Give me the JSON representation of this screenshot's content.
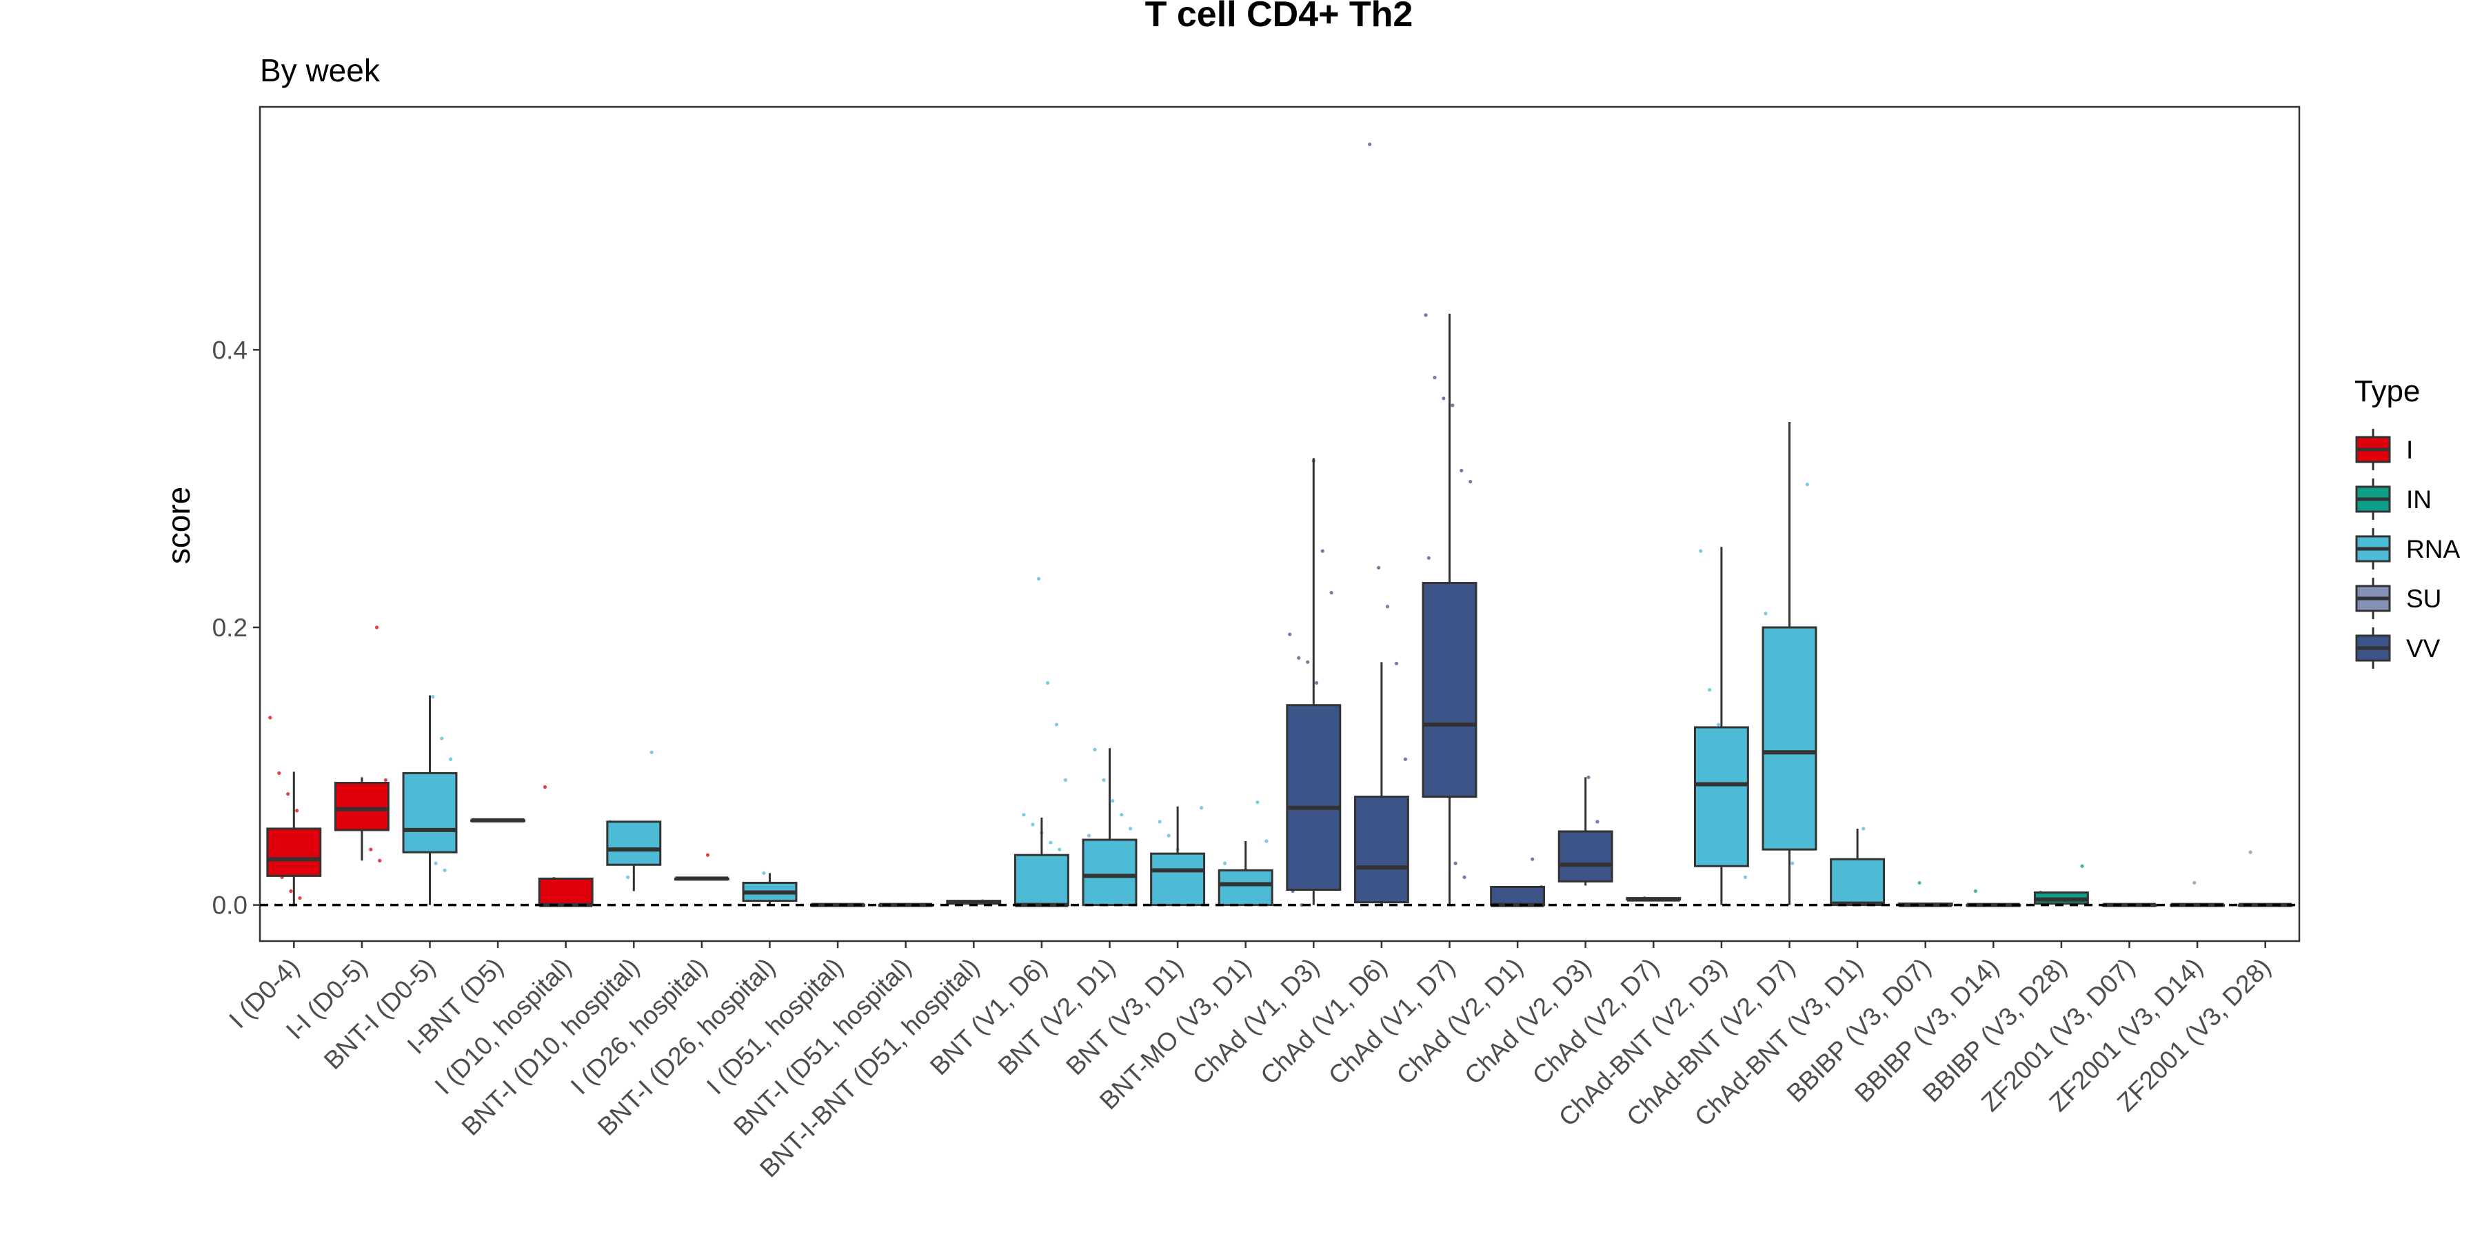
{
  "chart_data": {
    "type": "box",
    "title": "T cell CD4+ Th2",
    "subtitle": "By week",
    "xlabel": "",
    "ylabel": "score",
    "ylim": [
      -0.026,
      0.575
    ],
    "yticks": [
      0.0,
      0.2,
      0.4
    ],
    "ytick_labels": [
      "0.0",
      "0.2",
      "0.4"
    ],
    "reference_line": {
      "y": 0.0,
      "style": "dashed"
    },
    "grid": false,
    "legend": {
      "title": "Type",
      "position": "right",
      "entries": [
        {
          "name": "I",
          "color": "#E0000B"
        },
        {
          "name": "IN",
          "color": "#0D9F87"
        },
        {
          "name": "RNA",
          "color": "#4DBBD5"
        },
        {
          "name": "SU",
          "color": "#8491B4"
        },
        {
          "name": "VV",
          "color": "#3C5488"
        }
      ]
    },
    "boxes": [
      {
        "category": "I (D0-4)",
        "type": "I",
        "min": 0.0,
        "q1": 0.021,
        "median": 0.033,
        "q3": 0.055,
        "max": 0.096,
        "points": [
          0.135,
          0.095,
          0.08,
          0.068,
          0.05,
          0.04,
          0.03,
          0.02,
          0.01,
          0.005
        ]
      },
      {
        "category": "I-I (D0-5)",
        "type": "I",
        "min": 0.032,
        "q1": 0.054,
        "median": 0.069,
        "q3": 0.088,
        "max": 0.092,
        "points": [
          0.2,
          0.09,
          0.085,
          0.075,
          0.06,
          0.04,
          0.032
        ]
      },
      {
        "category": "BNT-I (D0-5)",
        "type": "RNA",
        "min": 0.0,
        "q1": 0.038,
        "median": 0.054,
        "q3": 0.095,
        "max": 0.151,
        "points": [
          0.15,
          0.12,
          0.105,
          0.09,
          0.07,
          0.05,
          0.03,
          0.025
        ]
      },
      {
        "category": "I-BNT (D5)",
        "type": "I",
        "min": 0.061,
        "q1": 0.061,
        "median": 0.061,
        "q3": 0.061,
        "max": 0.061,
        "points": [
          0.061
        ]
      },
      {
        "category": "I (D10, hospital)",
        "type": "I",
        "min": 0.0,
        "q1": 0.0,
        "median": 0.0,
        "q3": 0.019,
        "max": 0.019,
        "points": [
          0.085,
          0.019,
          0.002
        ]
      },
      {
        "category": "BNT-I (D10, hospital)",
        "type": "RNA",
        "min": 0.01,
        "q1": 0.029,
        "median": 0.04,
        "q3": 0.06,
        "max": 0.06,
        "points": [
          0.11,
          0.06,
          0.04,
          0.02
        ]
      },
      {
        "category": "I (D26, hospital)",
        "type": "I",
        "min": 0.019,
        "q1": 0.019,
        "median": 0.019,
        "q3": 0.019,
        "max": 0.019,
        "points": [
          0.036,
          0.019
        ]
      },
      {
        "category": "BNT-I (D26, hospital)",
        "type": "RNA",
        "min": 0.0,
        "q1": 0.003,
        "median": 0.009,
        "q3": 0.016,
        "max": 0.023,
        "points": [
          0.023,
          0.012,
          0.004
        ]
      },
      {
        "category": "I (D51, hospital)",
        "type": "I",
        "min": 0.0,
        "q1": 0.0,
        "median": 0.0,
        "q3": 0.0,
        "max": 0.0,
        "points": [
          0.0
        ]
      },
      {
        "category": "BNT-I (D51, hospital)",
        "type": "RNA",
        "min": 0.0,
        "q1": 0.0,
        "median": 0.0,
        "q3": 0.0,
        "max": 0.0,
        "points": [
          0.0
        ]
      },
      {
        "category": "BNT-I-BNT (D51, hospital)",
        "type": "RNA",
        "min": 0.0,
        "q1": 0.001,
        "median": 0.002,
        "q3": 0.003,
        "max": 0.003,
        "points": [
          0.003
        ]
      },
      {
        "category": "BNT (V1, D6)",
        "type": "RNA",
        "min": 0.0,
        "q1": 0.0,
        "median": 0.0,
        "q3": 0.036,
        "max": 0.063,
        "points": [
          0.235,
          0.16,
          0.13,
          0.09,
          0.065,
          0.058,
          0.052,
          0.045,
          0.04,
          0.02,
          0.01
        ]
      },
      {
        "category": "BNT (V2, D1)",
        "type": "RNA",
        "min": 0.0,
        "q1": 0.0,
        "median": 0.021,
        "q3": 0.047,
        "max": 0.113,
        "points": [
          0.112,
          0.09,
          0.075,
          0.065,
          0.055,
          0.05,
          0.03,
          0.015,
          0.005
        ]
      },
      {
        "category": "BNT (V3, D1)",
        "type": "RNA",
        "min": 0.0,
        "q1": 0.0,
        "median": 0.025,
        "q3": 0.037,
        "max": 0.071,
        "points": [
          0.07,
          0.06,
          0.05,
          0.04,
          0.03,
          0.01
        ]
      },
      {
        "category": "BNT-MO (V3, D1)",
        "type": "RNA",
        "min": 0.0,
        "q1": 0.0,
        "median": 0.015,
        "q3": 0.025,
        "max": 0.046,
        "points": [
          0.074,
          0.046,
          0.03,
          0.02,
          0.005
        ]
      },
      {
        "category": "ChAd (V1, D3)",
        "type": "VV",
        "min": 0.0,
        "q1": 0.011,
        "median": 0.07,
        "q3": 0.144,
        "max": 0.322,
        "points": [
          0.32,
          0.255,
          0.225,
          0.195,
          0.178,
          0.175,
          0.16,
          0.12,
          0.06,
          0.01,
          0.0
        ]
      },
      {
        "category": "ChAd (V1, D6)",
        "type": "VV",
        "min": 0.0,
        "q1": 0.002,
        "median": 0.027,
        "q3": 0.078,
        "max": 0.175,
        "points": [
          0.548,
          0.243,
          0.215,
          0.174,
          0.105,
          0.06,
          0.03,
          0.004
        ]
      },
      {
        "category": "ChAd (V1, D7)",
        "type": "VV",
        "min": 0.0,
        "q1": 0.078,
        "median": 0.13,
        "q3": 0.232,
        "max": 0.426,
        "points": [
          0.425,
          0.38,
          0.365,
          0.36,
          0.313,
          0.305,
          0.25,
          0.22,
          0.1,
          0.03,
          0.02
        ]
      },
      {
        "category": "ChAd (V2, D1)",
        "type": "VV",
        "min": 0.0,
        "q1": 0.0,
        "median": 0.0,
        "q3": 0.013,
        "max": 0.013,
        "points": [
          0.033,
          0.013
        ]
      },
      {
        "category": "ChAd (V2, D3)",
        "type": "VV",
        "min": 0.014,
        "q1": 0.017,
        "median": 0.029,
        "q3": 0.053,
        "max": 0.092,
        "points": [
          0.092,
          0.06,
          0.04,
          0.02
        ]
      },
      {
        "category": "ChAd (V2, D7)",
        "type": "VV",
        "min": 0.004,
        "q1": 0.004,
        "median": 0.004,
        "q3": 0.005,
        "max": 0.005,
        "points": [
          0.005
        ]
      },
      {
        "category": "ChAd-BNT (V2, D3)",
        "type": "RNA",
        "min": 0.0,
        "q1": 0.028,
        "median": 0.087,
        "q3": 0.128,
        "max": 0.258,
        "points": [
          0.255,
          0.155,
          0.13,
          0.09,
          0.05,
          0.02
        ]
      },
      {
        "category": "ChAd-BNT (V2, D7)",
        "type": "RNA",
        "min": 0.0,
        "q1": 0.04,
        "median": 0.11,
        "q3": 0.2,
        "max": 0.348,
        "points": [
          0.303,
          0.21,
          0.15,
          0.05,
          0.03
        ]
      },
      {
        "category": "ChAd-BNT (V3, D1)",
        "type": "RNA",
        "min": 0.0,
        "q1": 0.0,
        "median": 0.001,
        "q3": 0.033,
        "max": 0.055,
        "points": [
          0.055,
          0.02
        ]
      },
      {
        "category": "BBIBP (V3, D07)",
        "type": "IN",
        "min": 0.0,
        "q1": 0.0,
        "median": 0.0,
        "q3": 0.001,
        "max": 0.001,
        "points": [
          0.016
        ]
      },
      {
        "category": "BBIBP (V3, D14)",
        "type": "IN",
        "min": 0.0,
        "q1": 0.0,
        "median": 0.0,
        "q3": 0.0,
        "max": 0.0,
        "points": [
          0.01
        ]
      },
      {
        "category": "BBIBP (V3, D28)",
        "type": "IN",
        "min": 0.0,
        "q1": 0.001,
        "median": 0.004,
        "q3": 0.009,
        "max": 0.009,
        "points": [
          0.028,
          0.009
        ]
      },
      {
        "category": "ZF2001 (V3, D07)",
        "type": "SU",
        "min": 0.0,
        "q1": 0.0,
        "median": 0.0,
        "q3": 0.0,
        "max": 0.0,
        "points": [
          0.0
        ]
      },
      {
        "category": "ZF2001 (V3, D14)",
        "type": "SU",
        "min": 0.0,
        "q1": 0.0,
        "median": 0.0,
        "q3": 0.0,
        "max": 0.0,
        "points": [
          0.016
        ]
      },
      {
        "category": "ZF2001 (V3, D28)",
        "type": "SU",
        "min": 0.0,
        "q1": 0.0,
        "median": 0.0,
        "q3": 0.0,
        "max": 0.0,
        "points": [
          0.038
        ]
      }
    ]
  }
}
